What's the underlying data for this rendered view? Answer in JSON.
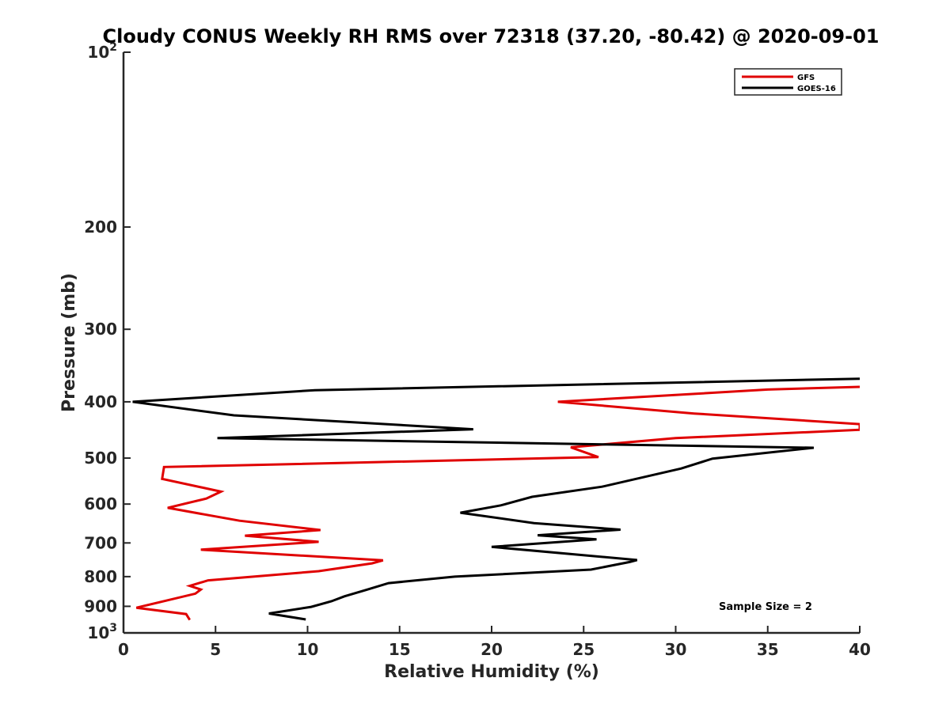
{
  "chart_data": {
    "type": "line",
    "title": "Cloudy CONUS Weekly RH RMS over 72318 (37.20, -80.42) @ 2020-09-01",
    "xlabel": "Relative Humidity (%)",
    "ylabel": "Pressure (mb)",
    "xlim": [
      0,
      40
    ],
    "ylim": [
      100,
      1000
    ],
    "yscale": "log",
    "y_reversed": true,
    "grid": false,
    "legend_position": "top-right",
    "x_ticks": [
      "0",
      "5",
      "10",
      "15",
      "20",
      "25",
      "30",
      "35",
      "40"
    ],
    "y_ticks": [
      {
        "value": 100,
        "base": "10",
        "exponent": "2"
      },
      {
        "value": 200,
        "label": "200"
      },
      {
        "value": 300,
        "label": "300"
      },
      {
        "value": 400,
        "label": "400"
      },
      {
        "value": 500,
        "label": "500"
      },
      {
        "value": 600,
        "label": "600"
      },
      {
        "value": 700,
        "label": "700"
      },
      {
        "value": 800,
        "label": "800"
      },
      {
        "value": 900,
        "label": "900"
      },
      {
        "value": 1000,
        "base": "10",
        "exponent": "3"
      }
    ],
    "series": [
      {
        "name": "GFS",
        "color": "#e00000",
        "points": [
          {
            "x": 40.0,
            "y": 377
          },
          {
            "x": 35.0,
            "y": 381
          },
          {
            "x": 23.6,
            "y": 400
          },
          {
            "x": 31.0,
            "y": 419
          },
          {
            "x": 40.0,
            "y": 437
          },
          {
            "x": 40.0,
            "y": 447
          },
          {
            "x": 30.0,
            "y": 462
          },
          {
            "x": 24.3,
            "y": 479
          },
          {
            "x": 25.8,
            "y": 498
          },
          {
            "x": 2.2,
            "y": 518
          },
          {
            "x": 2.1,
            "y": 543
          },
          {
            "x": 5.3,
            "y": 571
          },
          {
            "x": 4.5,
            "y": 587
          },
          {
            "x": 2.4,
            "y": 609
          },
          {
            "x": 6.3,
            "y": 641
          },
          {
            "x": 10.7,
            "y": 665
          },
          {
            "x": 6.6,
            "y": 680
          },
          {
            "x": 10.6,
            "y": 697
          },
          {
            "x": 4.2,
            "y": 719
          },
          {
            "x": 14.1,
            "y": 750
          },
          {
            "x": 13.5,
            "y": 759
          },
          {
            "x": 10.6,
            "y": 783
          },
          {
            "x": 4.6,
            "y": 812
          },
          {
            "x": 3.6,
            "y": 830
          },
          {
            "x": 4.2,
            "y": 842
          },
          {
            "x": 3.9,
            "y": 856
          },
          {
            "x": 2.3,
            "y": 880
          },
          {
            "x": 0.7,
            "y": 905
          },
          {
            "x": 3.4,
            "y": 928
          },
          {
            "x": 3.6,
            "y": 950
          }
        ]
      },
      {
        "name": "GOES-16",
        "color": "#000000",
        "points": [
          {
            "x": 40.0,
            "y": 365
          },
          {
            "x": 10.4,
            "y": 382
          },
          {
            "x": 0.5,
            "y": 400
          },
          {
            "x": 6.0,
            "y": 422
          },
          {
            "x": 19.0,
            "y": 446
          },
          {
            "x": 5.1,
            "y": 462
          },
          {
            "x": 37.5,
            "y": 480
          },
          {
            "x": 32.0,
            "y": 501
          },
          {
            "x": 30.3,
            "y": 521
          },
          {
            "x": 26.0,
            "y": 560
          },
          {
            "x": 22.2,
            "y": 583
          },
          {
            "x": 20.5,
            "y": 603
          },
          {
            "x": 18.3,
            "y": 621
          },
          {
            "x": 22.3,
            "y": 647
          },
          {
            "x": 27.0,
            "y": 664
          },
          {
            "x": 22.5,
            "y": 679
          },
          {
            "x": 25.7,
            "y": 690
          },
          {
            "x": 20.0,
            "y": 711
          },
          {
            "x": 27.9,
            "y": 749
          },
          {
            "x": 27.5,
            "y": 755
          },
          {
            "x": 25.4,
            "y": 778
          },
          {
            "x": 18.0,
            "y": 800
          },
          {
            "x": 14.4,
            "y": 821
          },
          {
            "x": 13.2,
            "y": 843
          },
          {
            "x": 12.0,
            "y": 865
          },
          {
            "x": 11.3,
            "y": 882
          },
          {
            "x": 10.2,
            "y": 902
          },
          {
            "x": 7.9,
            "y": 926
          },
          {
            "x": 9.9,
            "y": 948
          }
        ]
      }
    ],
    "annotations": [
      {
        "text": "Sample Size = 2"
      }
    ]
  }
}
